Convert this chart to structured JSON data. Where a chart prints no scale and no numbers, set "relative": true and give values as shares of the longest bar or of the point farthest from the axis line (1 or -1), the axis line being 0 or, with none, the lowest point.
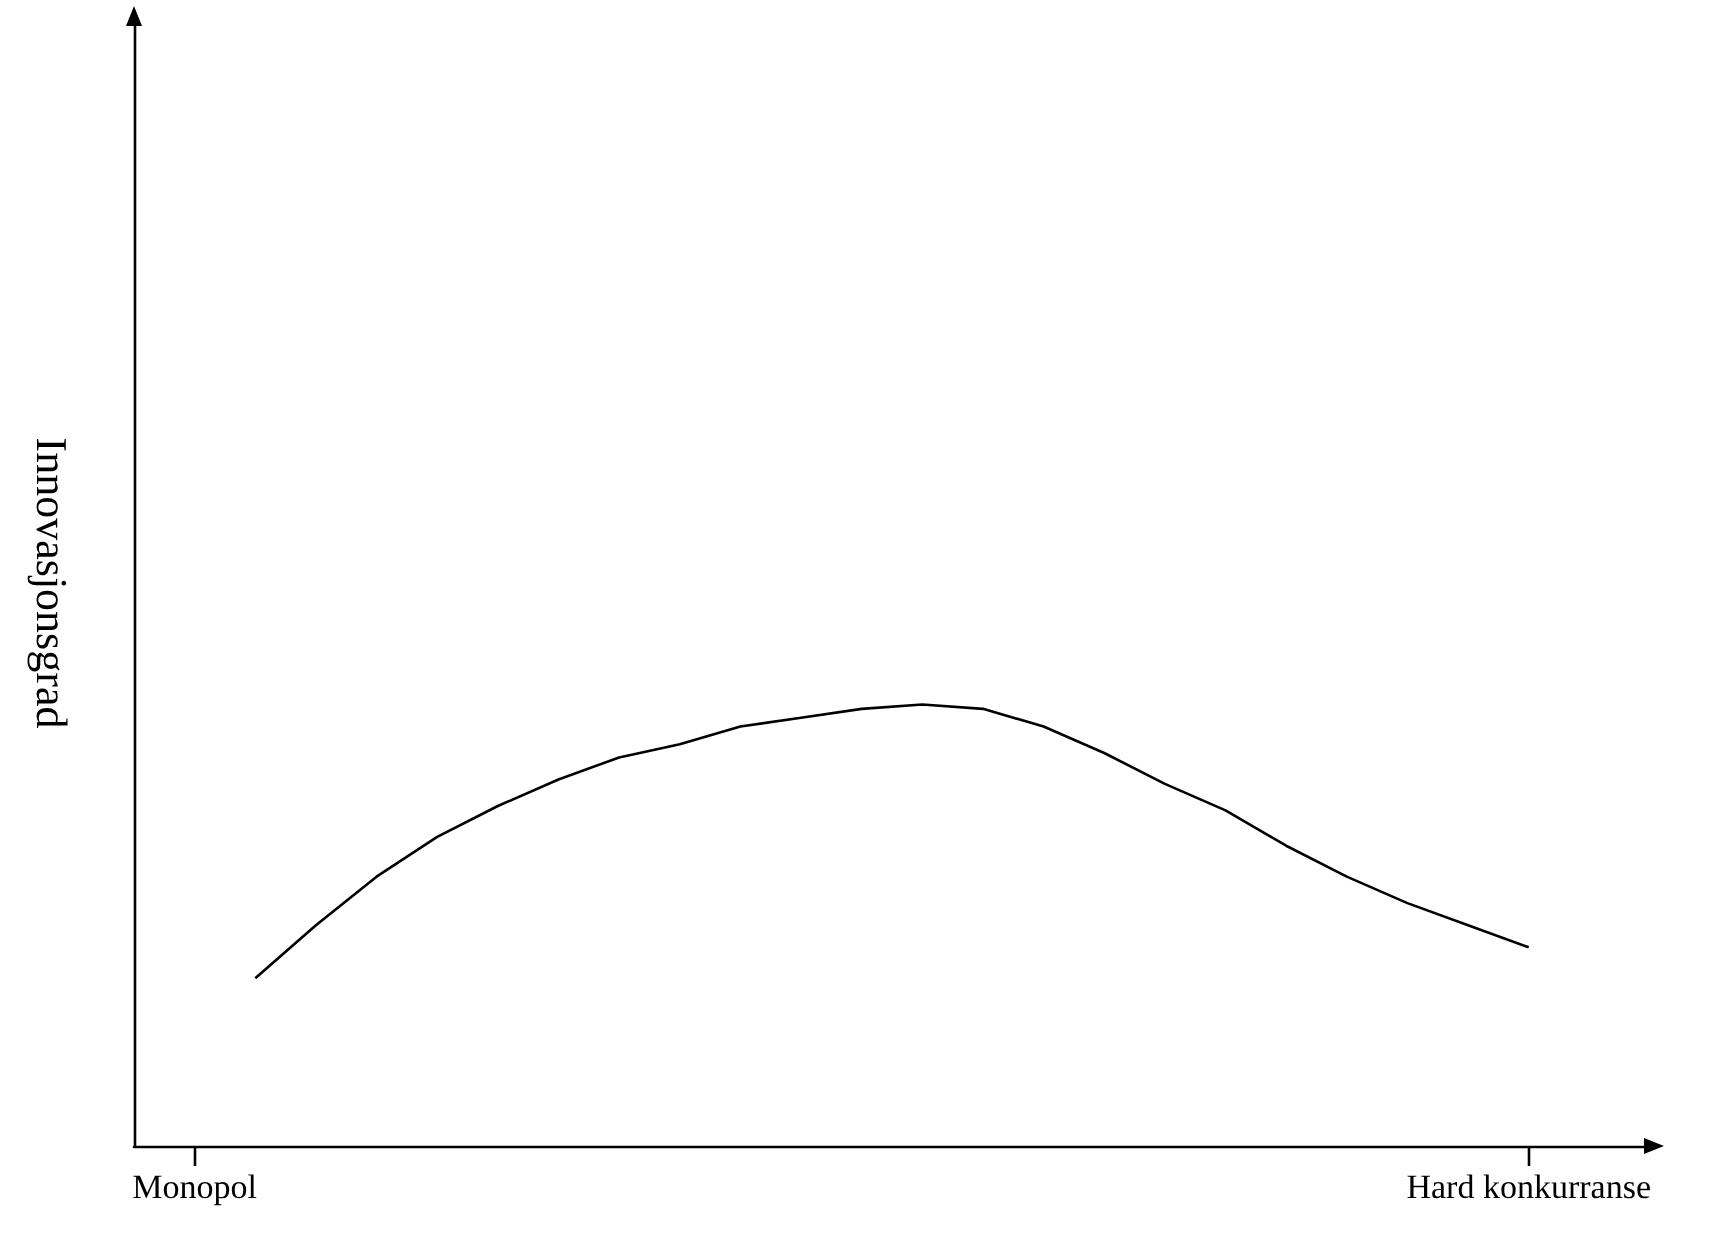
{
  "chart_data": {
    "type": "line",
    "ylabel": "Innovasjonsgrad",
    "relative": true,
    "categories": [
      null,
      "Monopol",
      null,
      null,
      null,
      null,
      null,
      null,
      null,
      null,
      null,
      null,
      null,
      null,
      null,
      null,
      null,
      null,
      null,
      null,
      null,
      null,
      null,
      "Hard konkurranse",
      null,
      null
    ],
    "series": [
      {
        "color": "#000000",
        "values": [
          null,
          null,
          0.38,
          0.5,
          0.61,
          0.7,
          0.77,
          0.83,
          0.88,
          0.91,
          0.95,
          0.97,
          0.99,
          1,
          0.99,
          0.95,
          0.89,
          0.82,
          0.76,
          0.68,
          0.61,
          0.55,
          0.5,
          0.45,
          null,
          null
        ]
      }
    ],
    "marker": "none",
    "line_style": "solid"
  }
}
